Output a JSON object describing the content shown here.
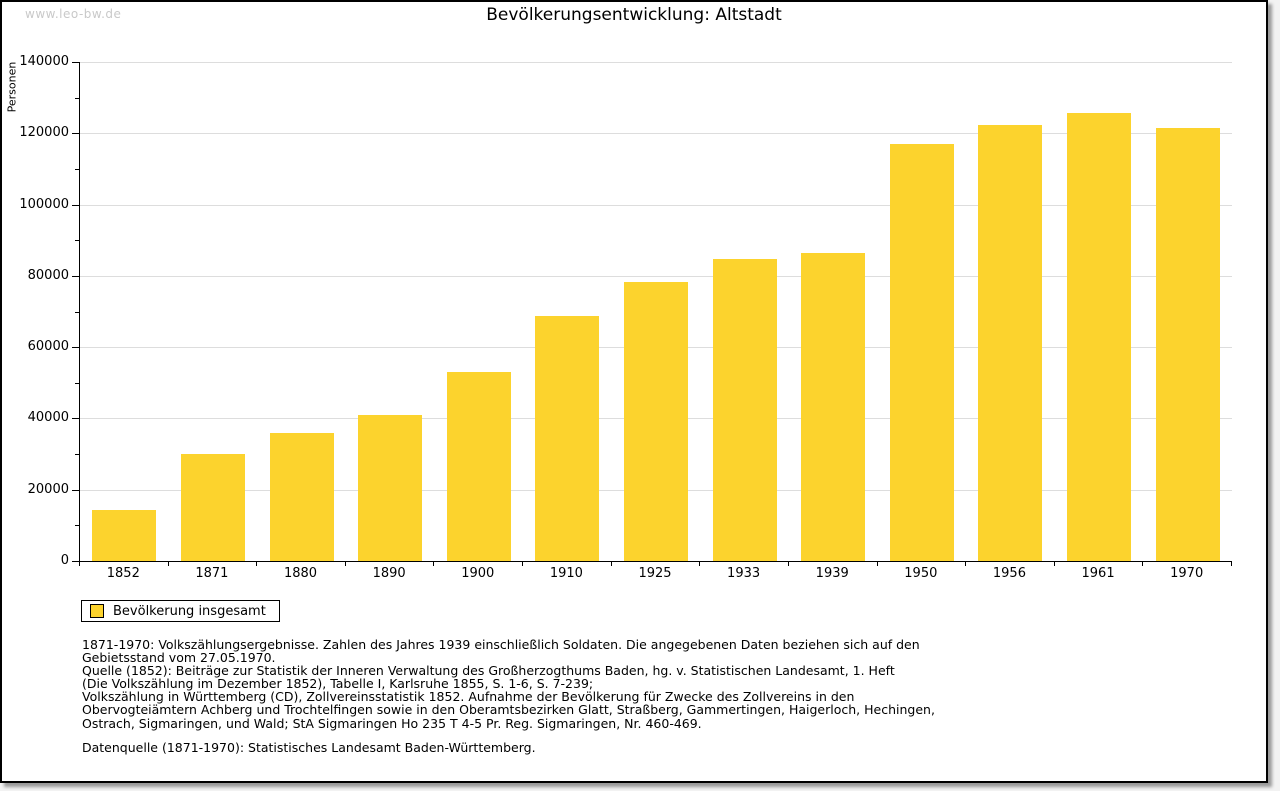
{
  "watermark": "www.leo-bw.de",
  "chart_data": {
    "type": "bar",
    "title": "Bevölkerungsentwicklung: Altstadt",
    "xlabel": "",
    "ylabel": "Personen",
    "categories": [
      "1852",
      "1871",
      "1880",
      "1890",
      "1900",
      "1910",
      "1925",
      "1933",
      "1939",
      "1950",
      "1956",
      "1961",
      "1970"
    ],
    "values": [
      14400,
      29900,
      36000,
      41100,
      53000,
      68700,
      78400,
      84800,
      86400,
      117000,
      122200,
      125700,
      121400
    ],
    "series_name": "Bevölkerung insgesamt",
    "ylim": [
      0,
      140000
    ],
    "y_major_step": 20000,
    "y_minor_step": 10000,
    "grid": true,
    "legend": {
      "label": "Bevölkerung insgesamt",
      "position": "bottom-left"
    }
  },
  "colors": {
    "bar": "#FCD32D",
    "grid": "#DDDDDD",
    "axis": "#000000",
    "watermark": "#C9C9C9"
  },
  "footnotes": {
    "lines": [
      "1871-1970: Volkszählungsergebnisse. Zahlen des Jahres 1939 einschließlich Soldaten. Die angegebenen Daten beziehen sich auf den",
      "Gebietsstand vom 27.05.1970.",
      "Quelle (1852): Beiträge zur Statistik der Inneren Verwaltung des Großherzogthums Baden, hg. v. Statistischen Landesamt, 1. Heft",
      "(Die Volkszählung im Dezember 1852), Tabelle I, Karlsruhe 1855, S. 1-6, S. 7-239;",
      "Volkszählung in Württemberg (CD), Zollvereinsstatistik 1852. Aufnahme der Bevölkerung für Zwecke des Zollvereins in den",
      "Obervogteiämtern Achberg und Trochtelfingen sowie in den Oberamtsbezirken Glatt, Straßberg, Gammertingen, Haigerloch, Hechingen,",
      "Ostrach, Sigmaringen, und Wald; StA Sigmaringen Ho 235 T 4-5 Pr. Reg. Sigmaringen, Nr. 460-469."
    ],
    "source": "Datenquelle (1871-1970): Statistisches Landesamt Baden-Württemberg."
  }
}
